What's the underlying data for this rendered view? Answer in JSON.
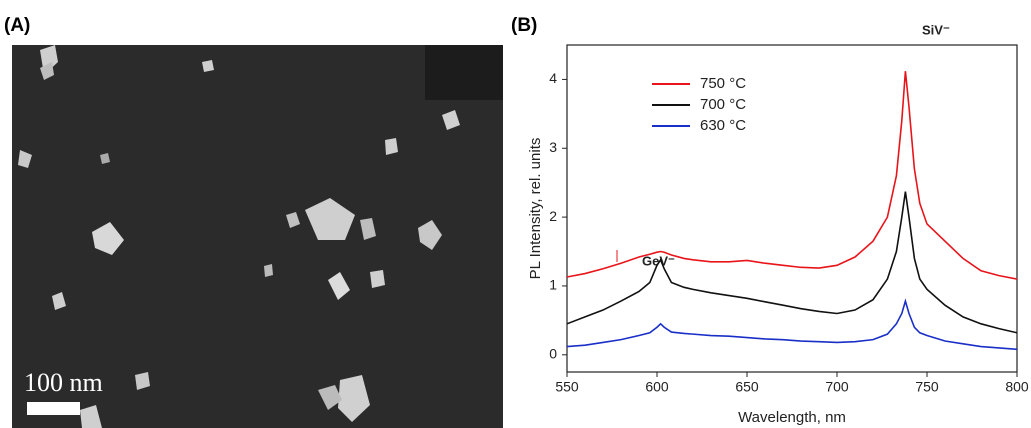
{
  "panel_a": {
    "label": "(A)",
    "scale_bar": "100 nm"
  },
  "panel_b": {
    "label": "(B)"
  },
  "annotations": [
    "GeV⁻",
    "SiV⁻"
  ],
  "chart_data": {
    "type": "line",
    "xlabel": "Wavelength, nm",
    "ylabel": "PL Intensity, rel. units",
    "x": [
      550,
      560,
      570,
      580,
      590,
      596,
      600,
      602,
      604,
      608,
      615,
      620,
      630,
      640,
      650,
      660,
      670,
      680,
      690,
      700,
      710,
      720,
      728,
      733,
      736,
      738,
      740,
      743,
      746,
      750,
      760,
      770,
      780,
      790,
      800
    ],
    "series": [
      {
        "name": "750 °C",
        "color": "#e8141a",
        "values": [
          1.13,
          1.18,
          1.25,
          1.33,
          1.42,
          1.46,
          1.49,
          1.5,
          1.49,
          1.45,
          1.4,
          1.38,
          1.35,
          1.35,
          1.37,
          1.33,
          1.3,
          1.27,
          1.26,
          1.3,
          1.42,
          1.65,
          2.0,
          2.6,
          3.4,
          4.12,
          3.6,
          2.7,
          2.2,
          1.9,
          1.65,
          1.4,
          1.22,
          1.15,
          1.1
        ]
      },
      {
        "name": "700 °C",
        "color": "#111111",
        "values": [
          0.45,
          0.55,
          0.65,
          0.78,
          0.92,
          1.05,
          1.3,
          1.38,
          1.25,
          1.05,
          0.98,
          0.95,
          0.9,
          0.86,
          0.82,
          0.77,
          0.72,
          0.67,
          0.63,
          0.6,
          0.65,
          0.8,
          1.1,
          1.5,
          2.0,
          2.37,
          2.0,
          1.4,
          1.1,
          0.95,
          0.72,
          0.55,
          0.45,
          0.38,
          0.32
        ]
      },
      {
        "name": "630 °C",
        "color": "#1a2fc8",
        "values": [
          0.12,
          0.14,
          0.18,
          0.22,
          0.28,
          0.32,
          0.4,
          0.45,
          0.4,
          0.33,
          0.31,
          0.3,
          0.28,
          0.27,
          0.25,
          0.23,
          0.22,
          0.2,
          0.19,
          0.18,
          0.19,
          0.22,
          0.3,
          0.45,
          0.6,
          0.78,
          0.6,
          0.4,
          0.32,
          0.28,
          0.2,
          0.16,
          0.12,
          0.1,
          0.08
        ]
      }
    ],
    "xlim": [
      550,
      800
    ],
    "xticks": [
      550,
      600,
      650,
      700,
      750,
      800
    ],
    "ylim": [
      -0.25,
      4.5
    ],
    "yticks": [
      0,
      1,
      2,
      3,
      4
    ],
    "legend": "upper-left"
  }
}
